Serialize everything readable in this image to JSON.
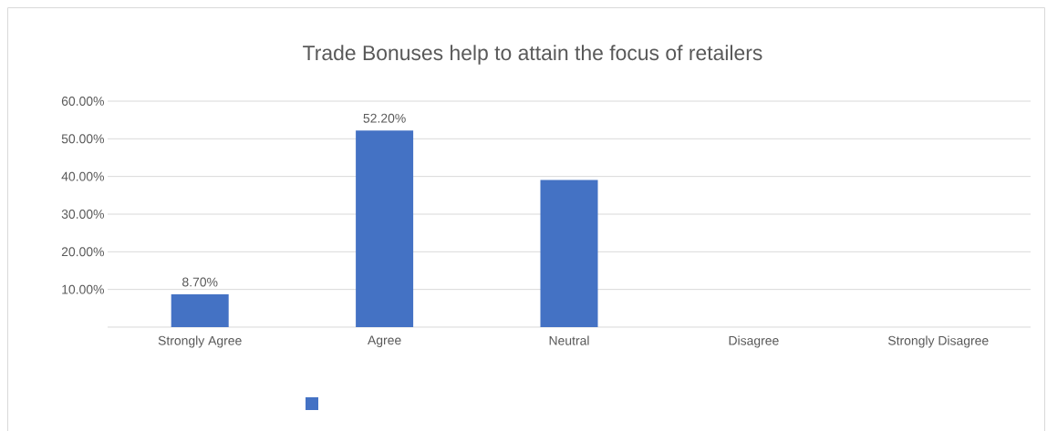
{
  "chart_data": {
    "type": "bar",
    "title": "Trade Bonuses help to attain the focus of retailers",
    "categories": [
      "Strongly Agree",
      "Agree",
      "Neutral",
      "Disagree",
      "Strongly Disagree"
    ],
    "values": [
      8.7,
      52.2,
      39.1,
      0,
      0
    ],
    "value_labels": [
      "8.70%",
      "52.20%",
      null,
      null,
      null
    ],
    "color": "#4472c4",
    "ylim": [
      0,
      60
    ],
    "yticks": [
      {
        "value": 10,
        "label": "10.00%"
      },
      {
        "value": 20,
        "label": "20.00%"
      },
      {
        "value": 30,
        "label": "30.00%"
      },
      {
        "value": 40,
        "label": "40.00%"
      },
      {
        "value": 50,
        "label": "50.00%"
      },
      {
        "value": 60,
        "label": "60.00%"
      }
    ],
    "grid": "y"
  }
}
